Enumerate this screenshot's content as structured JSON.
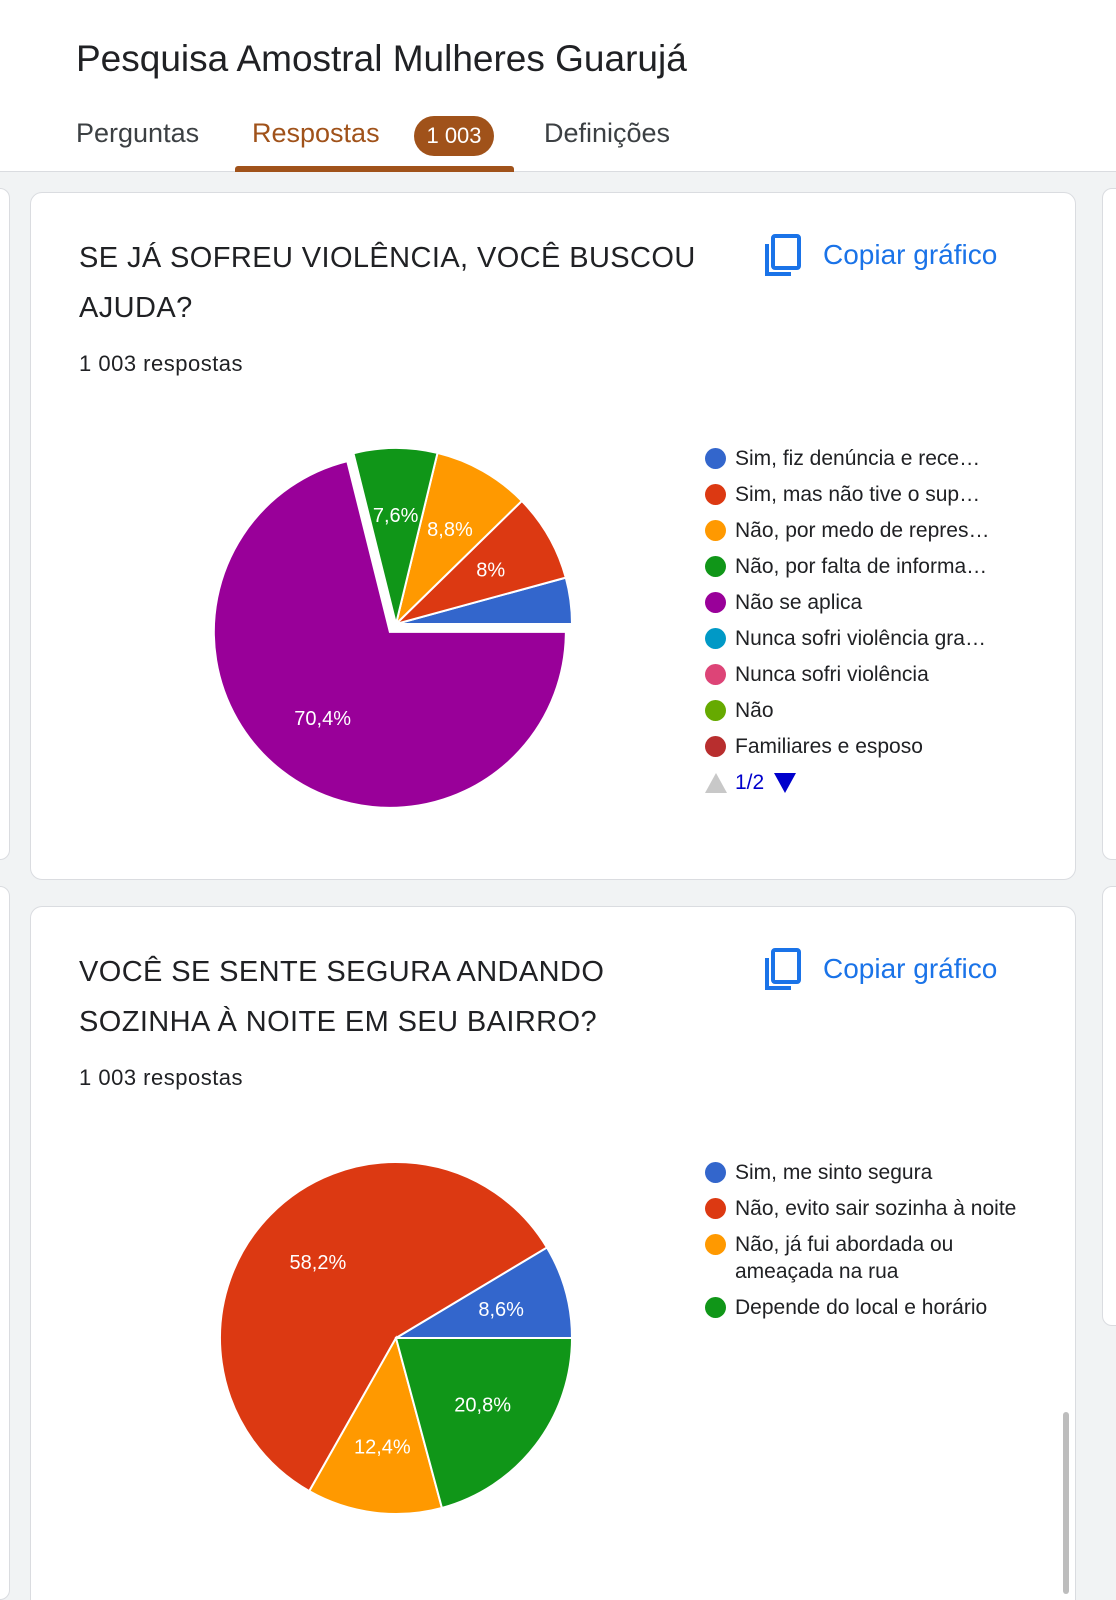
{
  "form": {
    "title": "Pesquisa Amostral Mulheres Guarujá"
  },
  "tabs": {
    "questions": "Perguntas",
    "responses": "Respostas",
    "responses_badge": "1 003",
    "settings": "Definições",
    "active": "responses"
  },
  "colors": {
    "accent": "#a0521a",
    "link": "#1a73e8"
  },
  "questions": [
    {
      "title": "SE JÁ SOFREU VIOLÊNCIA, VOCÊ BUSCOU AJUDA?",
      "response_count": "1 003 respostas",
      "copy_label": "Copiar gráfico",
      "copy_icon": "copy-icon",
      "legend_page": "1/2",
      "legend": [
        {
          "label": "Sim, fiz denúncia e rece…",
          "color": "#3366cc"
        },
        {
          "label": "Sim, mas não tive o sup…",
          "color": "#dc3912"
        },
        {
          "label": "Não, por medo de repres…",
          "color": "#ff9900"
        },
        {
          "label": "Não, por falta de informa…",
          "color": "#109618"
        },
        {
          "label": "Não se aplica",
          "color": "#990099"
        },
        {
          "label": "Nunca sofri violência gra…",
          "color": "#0099c6"
        },
        {
          "label": "Nunca sofri violência",
          "color": "#dd4477"
        },
        {
          "label": "Não",
          "color": "#66aa00"
        },
        {
          "label": "Familiares e esposo",
          "color": "#b82e2e"
        }
      ]
    },
    {
      "title": "VOCÊ SE SENTE SEGURA ANDANDO SOZINHA À NOITE EM SEU BAIRRO?",
      "response_count": "1 003 respostas",
      "copy_label": "Copiar gráfico",
      "copy_icon": "copy-icon",
      "legend": [
        {
          "label": "Sim, me sinto segura",
          "color": "#3366cc"
        },
        {
          "label": "Não, evito sair sozinha à noite",
          "color": "#dc3912"
        },
        {
          "label": "Não, já fui abordada ou ameaçada na rua",
          "color": "#ff9900"
        },
        {
          "label": "Depende do local e horário",
          "color": "#109618"
        }
      ]
    }
  ],
  "chart_data": [
    {
      "type": "pie",
      "labels": [
        "Sim, fiz denúncia e rece…",
        "Sim, mas não tive o sup…",
        "Não, por medo de repres…",
        "Não, por falta de informa…",
        "Não se aplica"
      ],
      "values": [
        4.2,
        8,
        8.8,
        7.6,
        70.4
      ],
      "value_labels": [
        "",
        "8%",
        "8,8%",
        "7,6%",
        "70,4%"
      ],
      "colors": [
        "#3366cc",
        "#dc3912",
        "#ff9900",
        "#109618",
        "#990099"
      ],
      "exploded": "Não se aplica"
    },
    {
      "type": "pie",
      "labels": [
        "Sim, me sinto segura",
        "Não, evito sair sozinha à noite",
        "Não, já fui abordada ou ameaçada na rua",
        "Depende do local e horário"
      ],
      "values": [
        8.6,
        58.2,
        12.4,
        20.8
      ],
      "value_labels": [
        "8,6%",
        "58,2%",
        "12,4%",
        "20,8%"
      ],
      "colors": [
        "#3366cc",
        "#dc3912",
        "#ff9900",
        "#109618"
      ]
    }
  ]
}
